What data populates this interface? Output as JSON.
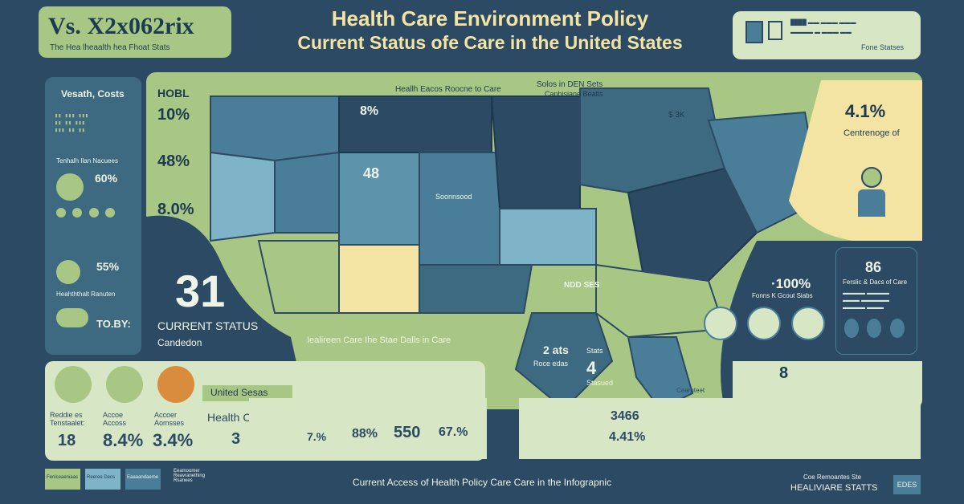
{
  "badge": {
    "title": "Vs. X2x062rix",
    "subtitle": "The Hea lheaalth hea Fhoat Stats"
  },
  "header": {
    "line1": "Health Care Environment Policy",
    "line2": "Current Status ofe Care in the United States"
  },
  "topright": {
    "caption": "Fone Statses"
  },
  "left_panel": {
    "title": "Vesath, Costs",
    "section2": "Tenhalh Ilan Nacuees",
    "pct1": "60%",
    "pct2": "55%",
    "section3": "Heahththalt Ranuten",
    "pct3": "TO.BY:"
  },
  "col2": {
    "title": "HOBL",
    "v1": "10%",
    "v2": "48%",
    "v3": "8.0%"
  },
  "map": {
    "title": "Heallh Eacos Roocne to Care",
    "subtitle": "Solos in DEN Sets",
    "subtitle2": "Canhisiane Bealts",
    "v_8pct": "8%",
    "v_48": "48",
    "sonesb": "Soonnsood",
    "dollar_k": "$ 3K",
    "big_num": "31",
    "status": "Current Status",
    "status_sub": "Candedon",
    "bottom_label": "Iealireen Care Ihe Stae Dalls in Care",
    "v_2ats": "2 ats",
    "v_stats": "Stats",
    "v_4": "4",
    "v_roce": "Roce edas",
    "v_stasued": "Stasued",
    "ndd": "NDD SES"
  },
  "right_panel": {
    "pct": "4.1%",
    "label": "Centrenoge of",
    "num86": "86",
    "num86_label": "Ferslic & Dacs of Care",
    "pct100": "·100%",
    "pct100_label": "Fonns K Gcout Siabs",
    "num8": "8",
    "heart": "Cearnteet"
  },
  "bottom": {
    "label_united": "United Sesas",
    "stat1_label": "Reddie es Tenstaalet:",
    "stat1": "18",
    "stat2_label": "Accoe Accoss",
    "stat2": "8.4%",
    "stat3_label": "Accoer Aomsses",
    "stat3": "3.4%",
    "hc_label": "Health Care",
    "hc_num": "3",
    "v1": "7.%",
    "v2": "88%",
    "v3": "550",
    "v4": "67.%",
    "v5": "3466",
    "v6": "4.41%"
  },
  "footer": {
    "caption": "Current Access of Health Policy Care Care in the Infograpnic",
    "brand_top": "Coe Remoantes Ste",
    "brand": "HEALIVIARE STATTS",
    "logo": "EDES"
  },
  "legend": [
    "Feniceaeniaas",
    "Reeree Decs",
    "Eaaaandaeme",
    "Eeamoomer Reavranething Rsanees"
  ],
  "colors": {
    "navy": "#2c4a63",
    "green": "#a9c784",
    "teal": "#4a7e98",
    "yellow": "#f4e4a3",
    "orange": "#d98c3e"
  }
}
